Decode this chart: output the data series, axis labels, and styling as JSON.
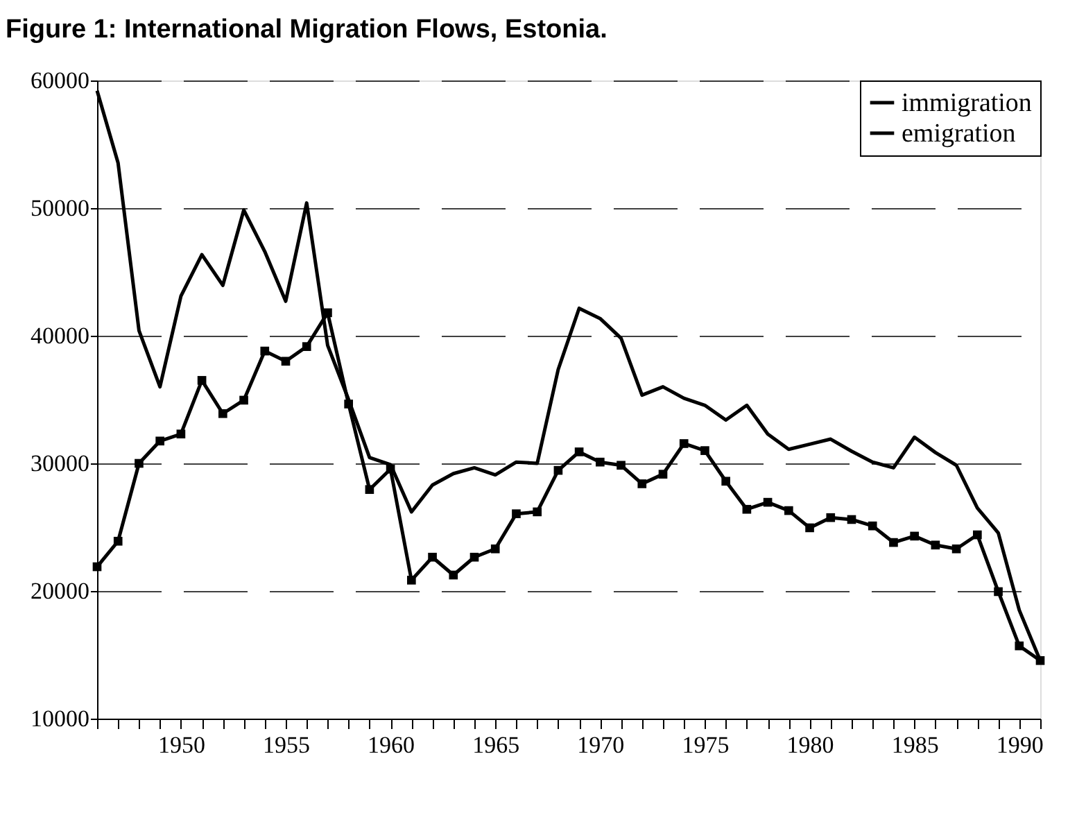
{
  "chart_data": {
    "type": "line",
    "title": "Figure 1: International Migration Flows, Estonia.",
    "x": [
      1946,
      1947,
      1948,
      1949,
      1950,
      1951,
      1952,
      1953,
      1954,
      1955,
      1956,
      1957,
      1958,
      1959,
      1960,
      1961,
      1962,
      1963,
      1964,
      1965,
      1966,
      1967,
      1968,
      1969,
      1970,
      1971,
      1972,
      1973,
      1974,
      1975,
      1976,
      1977,
      1978,
      1979,
      1980,
      1981,
      1982,
      1983,
      1984,
      1985,
      1986,
      1987,
      1988,
      1989,
      1990,
      1991
    ],
    "series": [
      {
        "name": "immigration",
        "color": "#000000",
        "marker": "none",
        "values": [
          59200,
          53550,
          40400,
          36000,
          43100,
          46350,
          43950,
          49850,
          46600,
          42700,
          50400,
          39250,
          35000,
          30450,
          29900,
          26200,
          28300,
          29200,
          29650,
          29100,
          30100,
          30000,
          37350,
          42150,
          41350,
          39800,
          35350,
          36000,
          35100,
          34550,
          33400,
          34550,
          32300,
          31100,
          31500,
          31900,
          30950,
          30100,
          29650,
          32050,
          30850,
          29850,
          26500,
          24550,
          18500,
          14550
        ]
      },
      {
        "name": "emigration",
        "color": "#000000",
        "marker": "square",
        "values": [
          21900,
          23900,
          30000,
          31750,
          32300,
          36500,
          33900,
          34950,
          38800,
          38000,
          39150,
          41800,
          34650,
          27950,
          29550,
          20850,
          22650,
          21250,
          22650,
          23300,
          26050,
          26200,
          29450,
          30900,
          30100,
          29850,
          28400,
          29150,
          31550,
          31000,
          28600,
          26400,
          26950,
          26300,
          24950,
          25750,
          25600,
          25100,
          23800,
          24300,
          23600,
          23300,
          24400,
          19950,
          15700,
          14550
        ]
      }
    ],
    "xlim": [
      1946,
      1991
    ],
    "xticks": [
      {
        "value": 1946,
        "label": null
      },
      {
        "value": 1947,
        "label": null
      },
      {
        "value": 1948,
        "label": null
      },
      {
        "value": 1949,
        "label": null
      },
      1950,
      {
        "value": 1951,
        "label": null
      },
      {
        "value": 1952,
        "label": null
      },
      {
        "value": 1953,
        "label": null
      },
      {
        "value": 1954,
        "label": null
      },
      1955,
      {
        "value": 1956,
        "label": null
      },
      {
        "value": 1957,
        "label": null
      },
      {
        "value": 1958,
        "label": null
      },
      {
        "value": 1959,
        "label": null
      },
      1960,
      {
        "value": 1961,
        "label": null
      },
      {
        "value": 1962,
        "label": null
      },
      {
        "value": 1963,
        "label": null
      },
      {
        "value": 1964,
        "label": null
      },
      1965,
      {
        "value": 1966,
        "label": null
      },
      {
        "value": 1967,
        "label": null
      },
      {
        "value": 1968,
        "label": null
      },
      {
        "value": 1969,
        "label": null
      },
      1970,
      {
        "value": 1971,
        "label": null
      },
      {
        "value": 1972,
        "label": null
      },
      {
        "value": 1973,
        "label": null
      },
      {
        "value": 1974,
        "label": null
      },
      1975,
      {
        "value": 1976,
        "label": null
      },
      {
        "value": 1977,
        "label": null
      },
      {
        "value": 1978,
        "label": null
      },
      {
        "value": 1979,
        "label": null
      },
      1980,
      {
        "value": 1981,
        "label": null
      },
      {
        "value": 1982,
        "label": null
      },
      {
        "value": 1983,
        "label": null
      },
      {
        "value": 1984,
        "label": null
      },
      1985,
      {
        "value": 1986,
        "label": null
      },
      {
        "value": 1987,
        "label": null
      },
      {
        "value": 1988,
        "label": null
      },
      {
        "value": 1989,
        "label": null
      },
      1990,
      {
        "value": 1991,
        "label": null
      }
    ],
    "ylim": [
      10000,
      60000
    ],
    "yticks": [
      10000,
      20000,
      30000,
      40000,
      50000,
      60000
    ],
    "grid": "y",
    "legend": "top right",
    "line_style": "solid"
  }
}
